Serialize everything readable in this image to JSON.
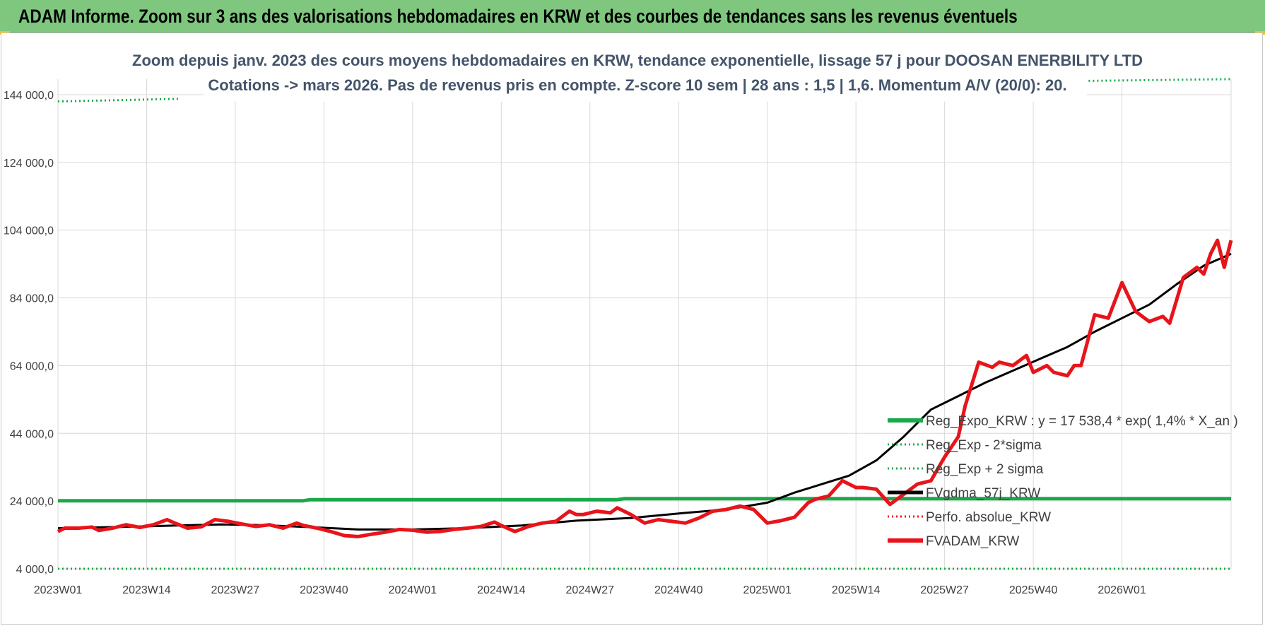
{
  "banner": {
    "title": "ADAM Informe. Zoom sur 3 ans des valorisations hebdomadaires en KRW et des courbes de tendances sans les revenus éventuels"
  },
  "colors": {
    "banner_bg": "#7fc77f",
    "title_text": "#44546a",
    "reg_green": "#1aa84a",
    "dotted_green": "#1aa84a",
    "price_red": "#e8141b",
    "gdma_black": "#000000",
    "grid": "#d9d9d9"
  },
  "chart_data": {
    "type": "line",
    "title_lines": [
      "Zoom depuis janv. 2023 des cours moyens hebdomadaires en KRW, tendance exponentielle, lissage 57 j pour DOOSAN ENERBILITY LTD",
      "Cotations -> mars 2026. Pas de revenus pris en compte. Z-score 10 sem | 28 ans : 1,5 | 1,6. Momentum A/V (20/0): 20."
    ],
    "ylim": [
      4000,
      148000
    ],
    "y_ticks": [
      "4 000,0",
      "24 000,0",
      "44 000,0",
      "64 000,0",
      "84 000,0",
      "104 000,0",
      "124 000,0",
      "144 000,0"
    ],
    "y_tick_values": [
      4000,
      24000,
      44000,
      64000,
      84000,
      104000,
      124000,
      144000
    ],
    "x_ticks": [
      "2023W01",
      "2023W14",
      "2023W27",
      "2023W40",
      "2024W01",
      "2024W14",
      "2024W27",
      "2024W40",
      "2025W01",
      "2025W14",
      "2025W27",
      "2025W40",
      "2026W01"
    ],
    "x_tick_index": [
      0,
      13,
      26,
      39,
      52,
      65,
      78,
      91,
      104,
      117,
      130,
      143,
      156
    ],
    "x_range": [
      0,
      172
    ],
    "grid": true,
    "legend_position": "right",
    "series": [
      {
        "name": "Reg_Expo_KRW : y = 17 538,4 * exp( 1,4% *  X_an )",
        "style": "solid-thick",
        "color": "#1aa84a",
        "x": [
          0,
          36,
          37,
          82,
          83,
          172
        ],
        "values": [
          24100,
          24100,
          24400,
          24400,
          24700,
          24700
        ]
      },
      {
        "name": "Reg_Exp - 2*sigma",
        "style": "dotted",
        "color": "#1aa84a",
        "x": [
          0,
          172
        ],
        "values": [
          4000,
          4000
        ]
      },
      {
        "name": "Reg_Exp + 2 sigma",
        "style": "dotted",
        "color": "#1aa84a",
        "segments": [
          {
            "x": [
              0,
              18
            ],
            "values": [
              142000,
              142800
            ]
          },
          {
            "x": [
              148,
              172
            ],
            "values": [
              148000,
              148600
            ]
          }
        ]
      },
      {
        "name": "FVgdma_57j_KRW",
        "style": "solid",
        "color": "#000000",
        "x": [
          0,
          8,
          16,
          24,
          30,
          38,
          44,
          52,
          60,
          68,
          76,
          84,
          92,
          98,
          104,
          108,
          112,
          116,
          120,
          124,
          128,
          132,
          136,
          140,
          144,
          148,
          152,
          156,
          160,
          164,
          168,
          172
        ],
        "values": [
          16000,
          16300,
          16700,
          17100,
          16900,
          16200,
          15600,
          15600,
          16000,
          16800,
          18200,
          19000,
          20500,
          21500,
          23500,
          26500,
          29000,
          31500,
          36000,
          43000,
          51000,
          55000,
          59000,
          62500,
          66000,
          69500,
          74000,
          78000,
          82000,
          88000,
          93500,
          97000
        ]
      },
      {
        "name": "Perfo. absolue_KRW",
        "style": "dotted",
        "color": "#e8141b",
        "x": [],
        "values": []
      },
      {
        "name": "FVADAM_KRW",
        "style": "solid-thick",
        "color": "#e8141b",
        "x": [
          0,
          1,
          3,
          5,
          6,
          8,
          10,
          12,
          14,
          16,
          17,
          19,
          21,
          23,
          25,
          27,
          29,
          31,
          33,
          35,
          36,
          38,
          40,
          42,
          44,
          46,
          48,
          50,
          52,
          54,
          56,
          58,
          60,
          62,
          64,
          65,
          67,
          69,
          71,
          73,
          75,
          76,
          77,
          79,
          81,
          82,
          84,
          86,
          88,
          90,
          92,
          94,
          96,
          98,
          100,
          102,
          104,
          106,
          108,
          110,
          111,
          113,
          115,
          117,
          118,
          120,
          122,
          124,
          126,
          128,
          130,
          132,
          133,
          135,
          137,
          138,
          140,
          142,
          143,
          145,
          146,
          148,
          149,
          150,
          152,
          154,
          156,
          158,
          160,
          162,
          163,
          165,
          167,
          168,
          169,
          170,
          171,
          172
        ],
        "values": [
          15000,
          16000,
          16000,
          16300,
          15300,
          16000,
          17000,
          16200,
          17000,
          18500,
          17600,
          16000,
          16400,
          18500,
          18000,
          17200,
          16500,
          17000,
          16000,
          17500,
          16800,
          16000,
          15000,
          13800,
          13500,
          14200,
          14800,
          15600,
          15400,
          14800,
          15000,
          15600,
          16000,
          16500,
          17800,
          16800,
          15000,
          16500,
          17500,
          18000,
          21000,
          20000,
          20000,
          21000,
          20500,
          22000,
          20000,
          17500,
          18500,
          18000,
          17500,
          19000,
          21000,
          21500,
          22500,
          21500,
          17500,
          18200,
          19200,
          23500,
          24500,
          25500,
          30000,
          28000,
          28000,
          27500,
          23000,
          26000,
          29000,
          30000,
          37000,
          43000,
          52000,
          65000,
          63500,
          65000,
          64000,
          67000,
          62000,
          64000,
          62000,
          61000,
          64000,
          64000,
          79000,
          78000,
          88500,
          80000,
          77000,
          78500,
          76500,
          90000,
          93000,
          91000,
          97000,
          101000,
          93000,
          101000
        ]
      }
    ]
  }
}
